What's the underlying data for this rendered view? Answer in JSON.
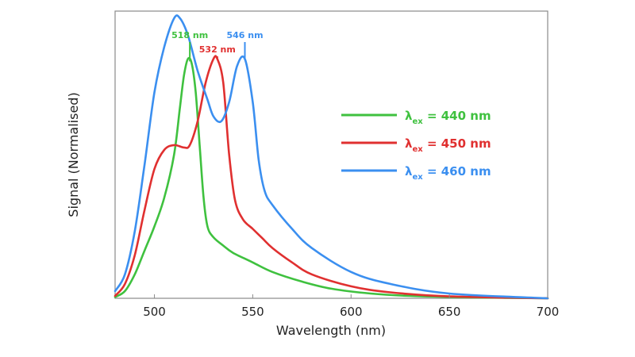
{
  "chart_data": {
    "type": "line",
    "xlabel": "Wavelength (nm)",
    "ylabel": "Signal (Normalised)",
    "xlim": [
      480,
      700
    ],
    "ylim": [
      0,
      1.2
    ],
    "xticks": [
      500,
      550,
      600,
      650,
      700
    ],
    "grid": false,
    "legend_position": "right",
    "series": [
      {
        "name": "λex = 440 nm",
        "legend": {
          "symbol": "λ",
          "sub": "ex",
          "rest": " = 440 nm"
        },
        "color": "#3fc13f",
        "x": [
          480,
          485,
          490,
          495,
          500,
          505,
          510,
          513,
          515,
          517,
          519,
          521,
          523,
          525,
          527,
          530,
          535,
          540,
          550,
          560,
          575,
          590,
          610,
          630,
          660,
          700
        ],
        "y": [
          0.005,
          0.03,
          0.1,
          0.2,
          0.3,
          0.42,
          0.6,
          0.8,
          0.93,
          1.0,
          0.98,
          0.86,
          0.64,
          0.42,
          0.3,
          0.255,
          0.22,
          0.19,
          0.15,
          0.11,
          0.07,
          0.04,
          0.02,
          0.01,
          0.004,
          0.0
        ]
      },
      {
        "name": "λex = 450 nm",
        "legend": {
          "symbol": "λ",
          "sub": "ex",
          "rest": " = 450 nm"
        },
        "color": "#e03030",
        "x": [
          480,
          485,
          490,
          495,
          500,
          505,
          510,
          515,
          518,
          522,
          526,
          530,
          532,
          535,
          538,
          541,
          545,
          550,
          555,
          560,
          570,
          580,
          600,
          620,
          650,
          700
        ],
        "y": [
          0.01,
          0.06,
          0.18,
          0.37,
          0.54,
          0.62,
          0.64,
          0.63,
          0.64,
          0.74,
          0.9,
          1.0,
          1.0,
          0.9,
          0.6,
          0.41,
          0.33,
          0.29,
          0.25,
          0.21,
          0.15,
          0.1,
          0.05,
          0.025,
          0.008,
          0.0
        ]
      },
      {
        "name": "λex = 460 nm",
        "legend": {
          "symbol": "λ",
          "sub": "ex",
          "rest": " = 460 nm"
        },
        "color": "#3b8ff0",
        "x": [
          480,
          485,
          490,
          495,
          500,
          505,
          510,
          513,
          517,
          522,
          527,
          530,
          534,
          538,
          542,
          546,
          550,
          553,
          556,
          560,
          570,
          580,
          600,
          620,
          650,
          700
        ],
        "y": [
          0.03,
          0.1,
          0.28,
          0.56,
          0.86,
          1.05,
          1.17,
          1.17,
          1.1,
          0.95,
          0.83,
          0.76,
          0.74,
          0.82,
          0.97,
          1.0,
          0.82,
          0.58,
          0.45,
          0.39,
          0.29,
          0.21,
          0.11,
          0.06,
          0.02,
          0.0
        ]
      }
    ],
    "annotations": [
      {
        "text": "518 nm",
        "x": 518,
        "color": "#3fc13f"
      },
      {
        "text": "532 nm",
        "x": 532,
        "color": "#e03030"
      },
      {
        "text": "546 nm",
        "x": 546,
        "color": "#3b8ff0"
      }
    ]
  }
}
